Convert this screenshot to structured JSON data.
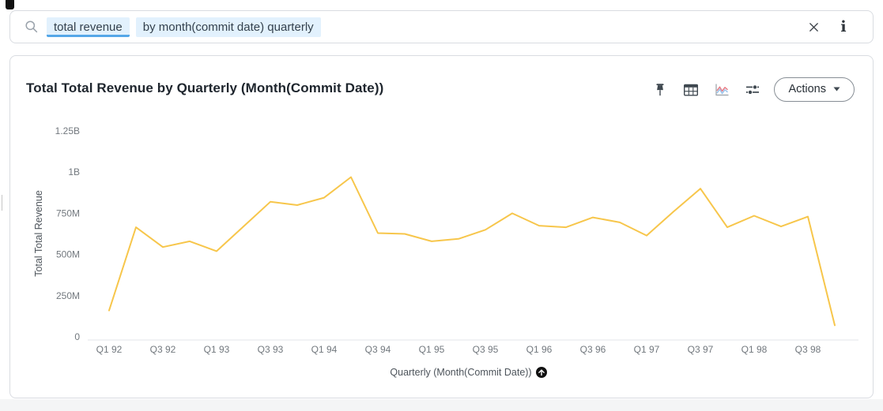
{
  "search_bar": {
    "tokens": [
      {
        "text": "total revenue",
        "active": true
      },
      {
        "text": "by month(commit date) quarterly",
        "active": false
      }
    ],
    "clear_icon": "x",
    "info_icon": "i"
  },
  "answer": {
    "title": "Total Total Revenue by Quarterly (Month(Commit Date))",
    "toolbar": {
      "icons": [
        "pin",
        "table-view",
        "chart-view",
        "configure"
      ],
      "actions_label": "Actions"
    }
  },
  "chart_data": {
    "type": "line",
    "title": "Total Total Revenue by Quarterly (Month(Commit Date))",
    "xlabel": "Quarterly (Month(Commit Date))",
    "ylabel": "Total Total Revenue",
    "categories": [
      "Q1 92",
      "Q2 92",
      "Q3 92",
      "Q4 92",
      "Q1 93",
      "Q2 93",
      "Q3 93",
      "Q4 93",
      "Q1 94",
      "Q2 94",
      "Q3 94",
      "Q4 94",
      "Q1 95",
      "Q2 95",
      "Q3 95",
      "Q4 95",
      "Q1 96",
      "Q2 96",
      "Q3 96",
      "Q4 96",
      "Q1 97",
      "Q2 97",
      "Q3 97",
      "Q4 97",
      "Q1 98",
      "Q2 98",
      "Q3 98",
      "Q4 98"
    ],
    "values_millions": [
      160,
      665,
      545,
      580,
      520,
      670,
      820,
      800,
      845,
      970,
      630,
      625,
      580,
      595,
      650,
      750,
      675,
      665,
      725,
      695,
      615,
      760,
      900,
      665,
      735,
      670,
      730,
      70
    ],
    "x_tick_labels": [
      "Q1 92",
      "Q3 92",
      "Q1 93",
      "Q3 93",
      "Q1 94",
      "Q3 94",
      "Q1 95",
      "Q3 95",
      "Q1 96",
      "Q3 96",
      "Q1 97",
      "Q3 97",
      "Q1 98",
      "Q3 98"
    ],
    "y_tick_labels": [
      "0",
      "250M",
      "500M",
      "750M",
      "1B",
      "1.25B"
    ],
    "y_tick_values_millions": [
      0,
      250,
      500,
      750,
      1000,
      1250
    ],
    "ylim_millions": [
      0,
      1250
    ],
    "grid": false,
    "legend": "none",
    "line_color": "#f7c64b",
    "sort_icon": "ascending"
  },
  "colors": {
    "token_bg": "#e2f1fd",
    "token_underline": "#55a7e8",
    "card_border": "#d9dce1",
    "line": "#f7c64b"
  }
}
